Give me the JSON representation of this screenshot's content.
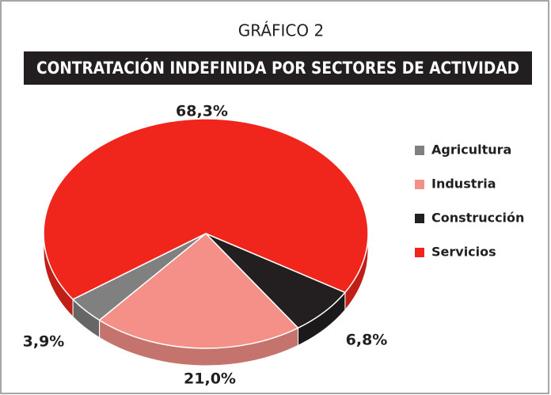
{
  "chart_data": {
    "type": "pie",
    "title": "GRÁFICO 2",
    "subtitle": "CONTRATACIÓN INDEFINIDA POR SECTORES DE ACTIVIDAD",
    "categories": [
      "Agricultura",
      "Industria",
      "Construcción",
      "Servicios"
    ],
    "values": [
      3.9,
      21.0,
      6.8,
      68.3
    ],
    "value_labels": [
      "3,9%",
      "21,0%",
      "6,8%",
      "68,3%"
    ],
    "colors": [
      "#808080",
      "#f59088",
      "#231f20",
      "#f0261c"
    ],
    "legend": "right"
  }
}
